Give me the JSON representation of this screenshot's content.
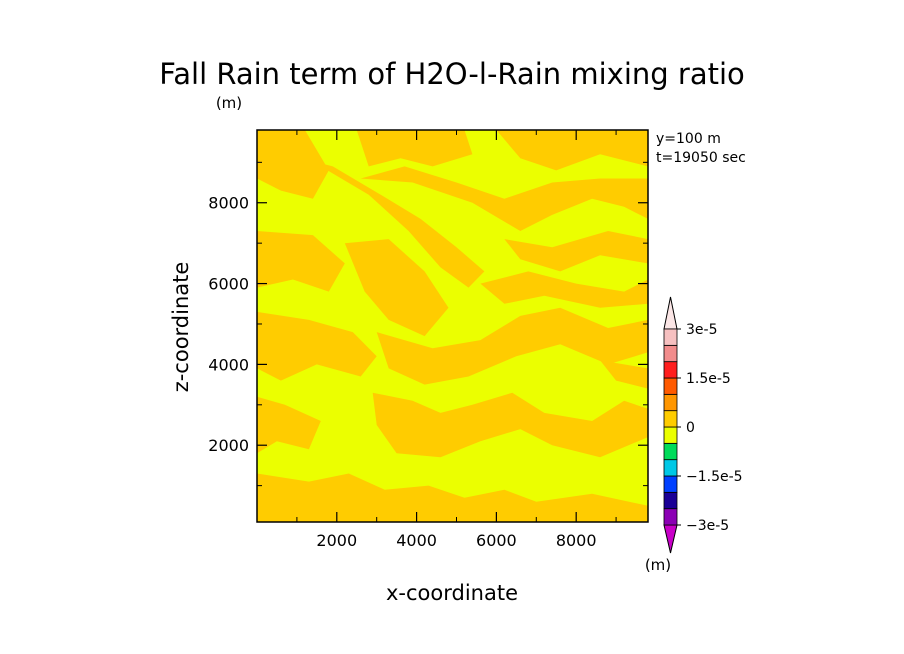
{
  "chart_data": {
    "type": "heatmap",
    "title": "Fall Rain term of H2O-l-Rain mixing ratio",
    "units_label": "(m)",
    "xlabel": "x-coordinate",
    "ylabel": "z-coordinate",
    "annotations": [
      "y=100 m",
      "t=19050 sec"
    ],
    "xlim": [
      0,
      9800
    ],
    "ylim": [
      100,
      9800
    ],
    "x_ticks": [
      {
        "value": 2000,
        "label": "2000"
      },
      {
        "value": 4000,
        "label": "4000"
      },
      {
        "value": 6000,
        "label": "6000"
      },
      {
        "value": 8000,
        "label": "8000"
      }
    ],
    "y_ticks": [
      {
        "value": 2000,
        "label": "2000"
      },
      {
        "value": 4000,
        "label": "4000"
      },
      {
        "value": 6000,
        "label": "6000"
      },
      {
        "value": 8000,
        "label": "8000"
      }
    ],
    "background_level_color": "#ebff00",
    "contour_regions": [
      {
        "level": 0,
        "color": "#ffcc00",
        "points": [
          [
            0,
            9800
          ],
          [
            1200,
            9800
          ],
          [
            1800,
            8800
          ],
          [
            1400,
            8100
          ],
          [
            600,
            8300
          ],
          [
            0,
            8600
          ]
        ]
      },
      {
        "level": 0,
        "color": "#ffcc00",
        "points": [
          [
            2500,
            9800
          ],
          [
            5200,
            9800
          ],
          [
            5400,
            9200
          ],
          [
            4400,
            8900
          ],
          [
            3600,
            9100
          ],
          [
            2800,
            8900
          ]
        ]
      },
      {
        "level": 0,
        "color": "#ffcc00",
        "points": [
          [
            6000,
            9800
          ],
          [
            9800,
            9800
          ],
          [
            9800,
            8900
          ],
          [
            8600,
            9200
          ],
          [
            7500,
            8800
          ],
          [
            6600,
            9100
          ]
        ]
      },
      {
        "level": 0,
        "color": "#ffcc00",
        "points": [
          [
            900,
            8700
          ],
          [
            1600,
            8900
          ],
          [
            2800,
            8200
          ],
          [
            3800,
            7300
          ],
          [
            4600,
            6400
          ],
          [
            5300,
            5900
          ],
          [
            5700,
            6300
          ],
          [
            5000,
            6900
          ],
          [
            4100,
            7600
          ],
          [
            3100,
            8200
          ],
          [
            1900,
            8900
          ],
          [
            1100,
            9100
          ]
        ]
      },
      {
        "level": 0,
        "color": "#ffcc00",
        "points": [
          [
            2600,
            8600
          ],
          [
            3900,
            8500
          ],
          [
            5400,
            8000
          ],
          [
            6600,
            7300
          ],
          [
            7400,
            7700
          ],
          [
            8400,
            8100
          ],
          [
            9200,
            7900
          ],
          [
            9800,
            7600
          ],
          [
            9800,
            8600
          ],
          [
            8600,
            8600
          ],
          [
            7400,
            8500
          ],
          [
            6200,
            8100
          ],
          [
            5000,
            8500
          ],
          [
            3700,
            8900
          ]
        ]
      },
      {
        "level": 0,
        "color": "#ffcc00",
        "points": [
          [
            6200,
            7100
          ],
          [
            7400,
            6900
          ],
          [
            8800,
            7300
          ],
          [
            9800,
            7100
          ],
          [
            9800,
            6500
          ],
          [
            8600,
            6700
          ],
          [
            7600,
            6300
          ],
          [
            6600,
            6600
          ]
        ]
      },
      {
        "level": 0,
        "color": "#ffcc00",
        "points": [
          [
            0,
            7300
          ],
          [
            1400,
            7200
          ],
          [
            2200,
            6500
          ],
          [
            1800,
            5800
          ],
          [
            900,
            6100
          ],
          [
            0,
            5900
          ]
        ]
      },
      {
        "level": 0,
        "color": "#ffcc00",
        "points": [
          [
            2200,
            7000
          ],
          [
            3300,
            7100
          ],
          [
            4200,
            6300
          ],
          [
            4800,
            5400
          ],
          [
            4200,
            4700
          ],
          [
            3300,
            5100
          ],
          [
            2700,
            5800
          ]
        ]
      },
      {
        "level": 0,
        "color": "#ffcc00",
        "points": [
          [
            0,
            5300
          ],
          [
            1300,
            5100
          ],
          [
            2400,
            4800
          ],
          [
            3000,
            4200
          ],
          [
            2600,
            3700
          ],
          [
            1500,
            4000
          ],
          [
            600,
            3600
          ],
          [
            0,
            3900
          ]
        ]
      },
      {
        "level": 0,
        "color": "#ffcc00",
        "points": [
          [
            3000,
            4800
          ],
          [
            4400,
            4400
          ],
          [
            5600,
            4600
          ],
          [
            6600,
            5200
          ],
          [
            7600,
            5400
          ],
          [
            8800,
            4900
          ],
          [
            9800,
            5100
          ],
          [
            9800,
            4300
          ],
          [
            8800,
            4000
          ],
          [
            7600,
            4500
          ],
          [
            6500,
            4200
          ],
          [
            5300,
            3700
          ],
          [
            4200,
            3500
          ],
          [
            3300,
            3900
          ]
        ]
      },
      {
        "level": 0,
        "color": "#ffcc00",
        "points": [
          [
            5600,
            6000
          ],
          [
            6800,
            6300
          ],
          [
            8000,
            6000
          ],
          [
            9200,
            5800
          ],
          [
            9800,
            6100
          ],
          [
            9800,
            5500
          ],
          [
            8600,
            5400
          ],
          [
            7200,
            5700
          ],
          [
            6200,
            5500
          ]
        ]
      },
      {
        "level": 0,
        "color": "#ffcc00",
        "points": [
          [
            0,
            3200
          ],
          [
            700,
            3000
          ],
          [
            1600,
            2600
          ],
          [
            1300,
            1900
          ],
          [
            500,
            2100
          ],
          [
            0,
            1800
          ]
        ]
      },
      {
        "level": 0,
        "color": "#ffcc00",
        "points": [
          [
            2900,
            3300
          ],
          [
            3900,
            3100
          ],
          [
            4600,
            2800
          ],
          [
            5400,
            3000
          ],
          [
            6400,
            3300
          ],
          [
            7200,
            2800
          ],
          [
            8400,
            2600
          ],
          [
            9200,
            3100
          ],
          [
            9800,
            2900
          ],
          [
            9800,
            2200
          ],
          [
            8600,
            1700
          ],
          [
            7400,
            2000
          ],
          [
            6600,
            2400
          ],
          [
            5600,
            2100
          ],
          [
            4600,
            1700
          ],
          [
            3500,
            1800
          ],
          [
            3000,
            2500
          ]
        ]
      },
      {
        "level": 0,
        "color": "#ffcc00",
        "points": [
          [
            0,
            1300
          ],
          [
            1300,
            1100
          ],
          [
            2300,
            1300
          ],
          [
            3200,
            900
          ],
          [
            4300,
            1000
          ],
          [
            5200,
            700
          ],
          [
            6200,
            900
          ],
          [
            7000,
            600
          ],
          [
            8400,
            800
          ],
          [
            9800,
            500
          ],
          [
            9800,
            100
          ],
          [
            0,
            100
          ]
        ]
      },
      {
        "level": 0,
        "color": "#ffcc00",
        "points": [
          [
            8600,
            4100
          ],
          [
            9800,
            3900
          ],
          [
            9800,
            3400
          ],
          [
            9000,
            3600
          ]
        ]
      }
    ],
    "colorbar": {
      "unit": "(m)",
      "colors": [
        "#8b00b4",
        "#1a0096",
        "#0040ff",
        "#00c8e6",
        "#00dc5a",
        "#ebff00",
        "#ffcc00",
        "#ff9600",
        "#ff5a00",
        "#ff1e1e",
        "#f28c8c",
        "#f6c0c0"
      ],
      "top_arrow_color": "#fbe6e6",
      "bottom_arrow_color": "#c800c8",
      "labels": [
        {
          "index": 12,
          "text": "3e-5"
        },
        {
          "index": 9,
          "text": "1.5e-5"
        },
        {
          "index": 6,
          "text": "0"
        },
        {
          "index": 3,
          "text": "−1.5e-5"
        },
        {
          "index": 0,
          "text": "−3e-5"
        }
      ]
    }
  }
}
